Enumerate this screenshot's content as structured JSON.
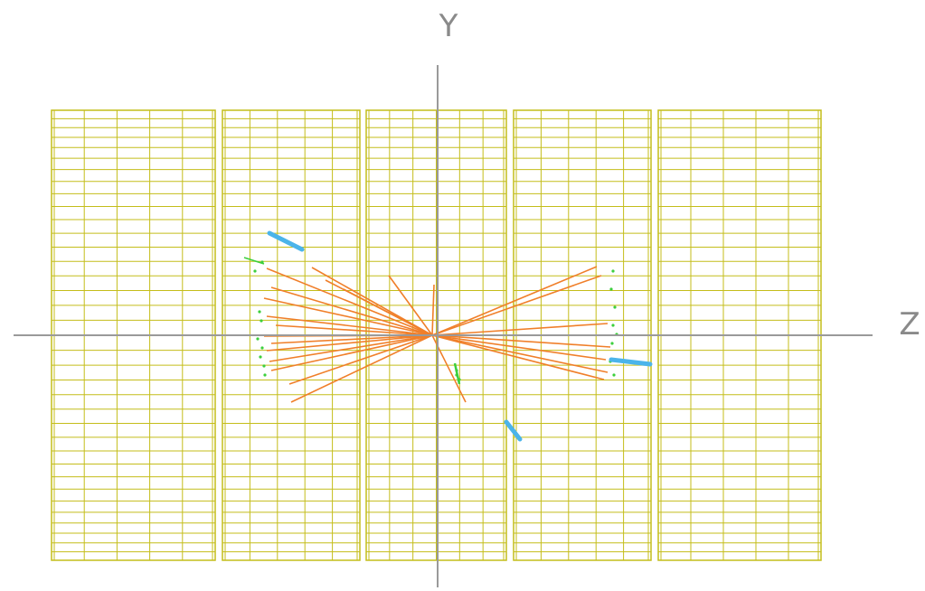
{
  "axes": {
    "y_label": "Y",
    "z_label": "Z"
  }
}
